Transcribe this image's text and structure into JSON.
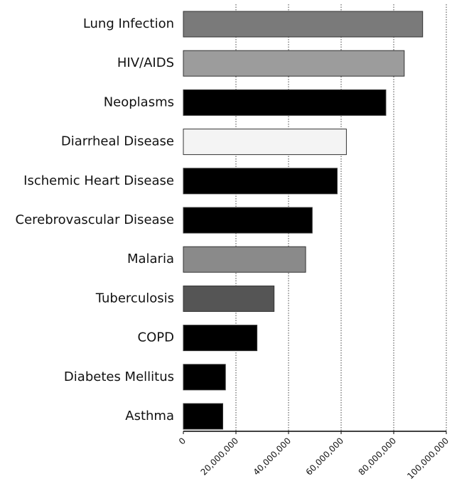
{
  "chart_data": {
    "type": "barh",
    "categories": [
      "Lung Infection",
      "HIV/AIDS",
      "Neoplasms",
      "Diarrheal Disease",
      "Ischemic Heart Disease",
      "Cerebrovascular Disease",
      "Malaria",
      "Tuberculosis",
      "COPD",
      "Diabetes Mellitus",
      "Asthma"
    ],
    "values": [
      91000000,
      84000000,
      77000000,
      62000000,
      58500000,
      49000000,
      46500000,
      34500000,
      28000000,
      16000000,
      15000000
    ],
    "colors": [
      "#7a7a7a",
      "#9c9c9c",
      "#000000",
      "#f4f4f4",
      "#000000",
      "#000000",
      "#8a8a8a",
      "#555555",
      "#000000",
      "#000000",
      "#000000"
    ],
    "xlim": [
      0,
      100000000
    ],
    "xticks": [
      0,
      {
        "value": 20000000,
        "label": "20,000,000"
      },
      {
        "value": 40000000,
        "label": "40,000,000"
      },
      {
        "value": 60000000,
        "label": "60,000,000"
      },
      {
        "value": 80000000,
        "label": "80,000,000"
      },
      {
        "value": 100000000,
        "label": "100,000,000"
      }
    ],
    "grid": true
  }
}
